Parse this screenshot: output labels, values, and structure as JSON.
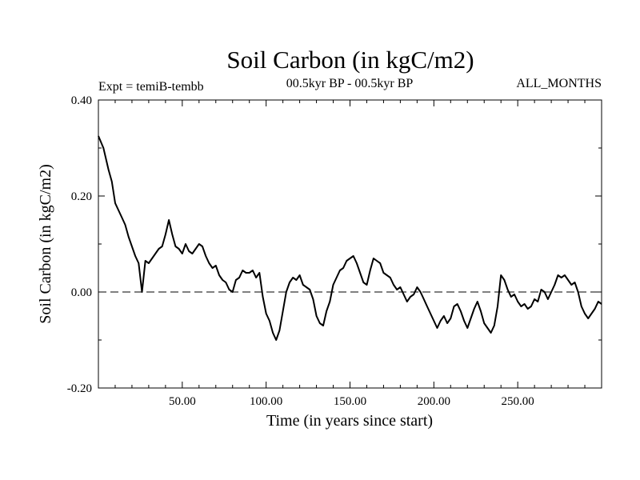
{
  "chart_data": {
    "type": "line",
    "title": "Soil Carbon (in kgC/m2)",
    "subtitle_left": "Expt = temiB-tembb",
    "subtitle_center": "00.5kyr BP - 00.5kyr BP",
    "subtitle_right": "ALL_MONTHS",
    "xlabel": "Time (in years since start)",
    "ylabel": "Soil Carbon (in kgC/m2)",
    "xlim": [
      0,
      300
    ],
    "ylim": [
      -0.2,
      0.4
    ],
    "x_ticks": [
      {
        "value": 50,
        "label": "50.00"
      },
      {
        "value": 100,
        "label": "100.00"
      },
      {
        "value": 150,
        "label": "150.00"
      },
      {
        "value": 200,
        "label": "200.00"
      },
      {
        "value": 250,
        "label": "250.00"
      }
    ],
    "y_ticks": [
      {
        "value": -0.2,
        "label": "-0.20"
      },
      {
        "value": 0.0,
        "label": "0.00"
      },
      {
        "value": 0.2,
        "label": "0.20"
      },
      {
        "value": 0.4,
        "label": "0.40"
      }
    ],
    "reference_line": {
      "y": 0.0,
      "style": "dashed"
    },
    "series": [
      {
        "name": "Soil Carbon",
        "x": [
          0,
          3,
          6,
          8,
          10,
          12,
          14,
          16,
          18,
          20,
          22,
          24,
          26,
          28,
          30,
          32,
          34,
          36,
          38,
          40,
          42,
          44,
          46,
          48,
          50,
          52,
          54,
          56,
          58,
          60,
          62,
          64,
          66,
          68,
          70,
          72,
          74,
          76,
          78,
          80,
          82,
          84,
          86,
          88,
          90,
          92,
          94,
          96,
          98,
          100,
          102,
          104,
          106,
          108,
          110,
          112,
          114,
          116,
          118,
          120,
          122,
          124,
          126,
          128,
          130,
          132,
          134,
          136,
          138,
          140,
          142,
          144,
          146,
          148,
          150,
          152,
          154,
          156,
          158,
          160,
          162,
          164,
          166,
          168,
          170,
          172,
          174,
          176,
          178,
          180,
          182,
          184,
          186,
          188,
          190,
          192,
          194,
          196,
          198,
          200,
          202,
          204,
          206,
          208,
          210,
          212,
          214,
          216,
          218,
          220,
          222,
          224,
          226,
          228,
          230,
          232,
          234,
          236,
          238,
          240,
          242,
          244,
          246,
          248,
          250,
          252,
          254,
          256,
          258,
          260,
          262,
          264,
          266,
          268,
          270,
          272,
          274,
          276,
          278,
          280,
          282,
          284,
          286,
          288,
          290,
          292,
          294,
          296,
          298,
          300
        ],
        "values": [
          0.325,
          0.3,
          0.255,
          0.23,
          0.185,
          0.17,
          0.155,
          0.14,
          0.115,
          0.095,
          0.075,
          0.06,
          0.0,
          0.065,
          0.06,
          0.07,
          0.08,
          0.09,
          0.095,
          0.12,
          0.15,
          0.12,
          0.095,
          0.09,
          0.08,
          0.1,
          0.085,
          0.08,
          0.09,
          0.1,
          0.095,
          0.075,
          0.06,
          0.05,
          0.055,
          0.035,
          0.025,
          0.02,
          0.005,
          0.0,
          0.025,
          0.03,
          0.045,
          0.04,
          0.04,
          0.045,
          0.03,
          0.04,
          -0.01,
          -0.045,
          -0.06,
          -0.085,
          -0.1,
          -0.08,
          -0.04,
          0.0,
          0.02,
          0.03,
          0.025,
          0.035,
          0.015,
          0.01,
          0.005,
          -0.015,
          -0.05,
          -0.065,
          -0.07,
          -0.04,
          -0.02,
          0.015,
          0.03,
          0.045,
          0.05,
          0.065,
          0.07,
          0.075,
          0.06,
          0.04,
          0.02,
          0.015,
          0.045,
          0.07,
          0.065,
          0.06,
          0.04,
          0.035,
          0.03,
          0.015,
          0.005,
          0.01,
          -0.005,
          -0.02,
          -0.01,
          -0.005,
          0.01,
          0.0,
          -0.015,
          -0.03,
          -0.045,
          -0.06,
          -0.075,
          -0.06,
          -0.05,
          -0.065,
          -0.055,
          -0.03,
          -0.025,
          -0.04,
          -0.06,
          -0.075,
          -0.055,
          -0.035,
          -0.02,
          -0.04,
          -0.065,
          -0.075,
          -0.085,
          -0.07,
          -0.03,
          0.035,
          0.025,
          0.005,
          -0.01,
          -0.005,
          -0.02,
          -0.03,
          -0.025,
          -0.035,
          -0.03,
          -0.015,
          -0.02,
          0.005,
          0.0,
          -0.015,
          0.0,
          0.015,
          0.035,
          0.03,
          0.035,
          0.025,
          0.015,
          0.02,
          0.0,
          -0.03,
          -0.045,
          -0.055,
          -0.045,
          -0.035,
          -0.02,
          -0.025
        ]
      }
    ]
  }
}
